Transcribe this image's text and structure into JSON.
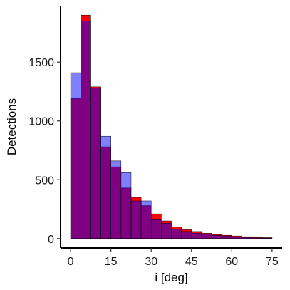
{
  "chart_data": {
    "type": "bar",
    "subtype": "overlaid-histogram",
    "xlabel": "i [deg]",
    "ylabel": "Detections",
    "xlim": [
      -3.75,
      78.75
    ],
    "ylim": [
      -80,
      1980
    ],
    "x_ticks": [
      0,
      15,
      30,
      45,
      60,
      75
    ],
    "y_ticks": [
      0,
      500,
      1000,
      1500
    ],
    "bin_width": 3.75,
    "bin_edges": [
      0,
      3.75,
      7.5,
      11.25,
      15,
      18.75,
      22.5,
      26.25,
      30,
      33.75,
      37.5,
      41.25,
      45,
      48.75,
      52.5,
      56.25,
      60,
      63.75,
      67.5,
      71.25,
      75
    ],
    "grid": false,
    "legend": "none",
    "series": [
      {
        "color": "#ff0000",
        "values": [
          1190,
          1900,
          1290,
          780,
          610,
          430,
          350,
          280,
          210,
          150,
          100,
          75,
          60,
          45,
          35,
          28,
          22,
          16,
          12,
          8
        ]
      },
      {
        "color": "#0000ff",
        "opacity": 0.5,
        "values": [
          1410,
          1850,
          1280,
          870,
          660,
          560,
          320,
          320,
          160,
          130,
          80,
          60,
          45,
          40,
          28,
          22,
          15,
          10,
          7,
          5
        ]
      }
    ]
  }
}
